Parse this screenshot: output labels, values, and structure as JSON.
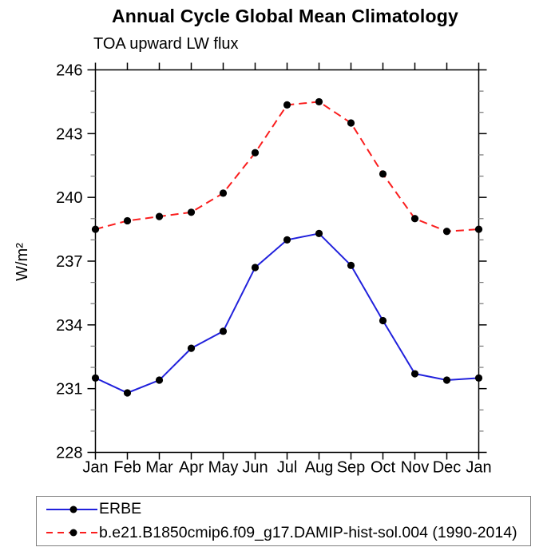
{
  "chart_data": {
    "type": "line",
    "title": "Annual Cycle Global Mean Climatology",
    "subtitle": "TOA upward LW flux",
    "ylabel": "W/m²",
    "xlabel": "",
    "categories": [
      "Jan",
      "Feb",
      "Mar",
      "Apr",
      "May",
      "Jun",
      "Jul",
      "Aug",
      "Sep",
      "Oct",
      "Nov",
      "Dec",
      "Jan"
    ],
    "ylim": [
      228,
      246
    ],
    "ytick_step": 3,
    "yminor_step": 1,
    "yticks": [
      228,
      231,
      234,
      237,
      240,
      243,
      246
    ],
    "grid": false,
    "legend_position": "bottom-left-box",
    "axis_color": "#000000",
    "minor_tick_color": "#777777",
    "series": [
      {
        "name": "ERBE",
        "color": "#2121dc",
        "line_style": "solid",
        "marker": "circle",
        "marker_color": "#000000",
        "values": [
          231.5,
          230.8,
          231.4,
          232.9,
          233.7,
          236.7,
          238.0,
          238.3,
          236.8,
          234.2,
          231.7,
          231.4,
          231.5
        ]
      },
      {
        "name": "b.e21.B1850cmip6.f09_g17.DAMIP-hist-sol.004 (1990-2014)",
        "color": "#fa1e1e",
        "line_style": "dashed",
        "marker": "circle",
        "marker_color": "#000000",
        "values": [
          238.5,
          238.9,
          239.1,
          239.3,
          240.2,
          242.1,
          244.35,
          244.5,
          243.5,
          241.1,
          239.0,
          238.4,
          238.5
        ]
      }
    ]
  }
}
